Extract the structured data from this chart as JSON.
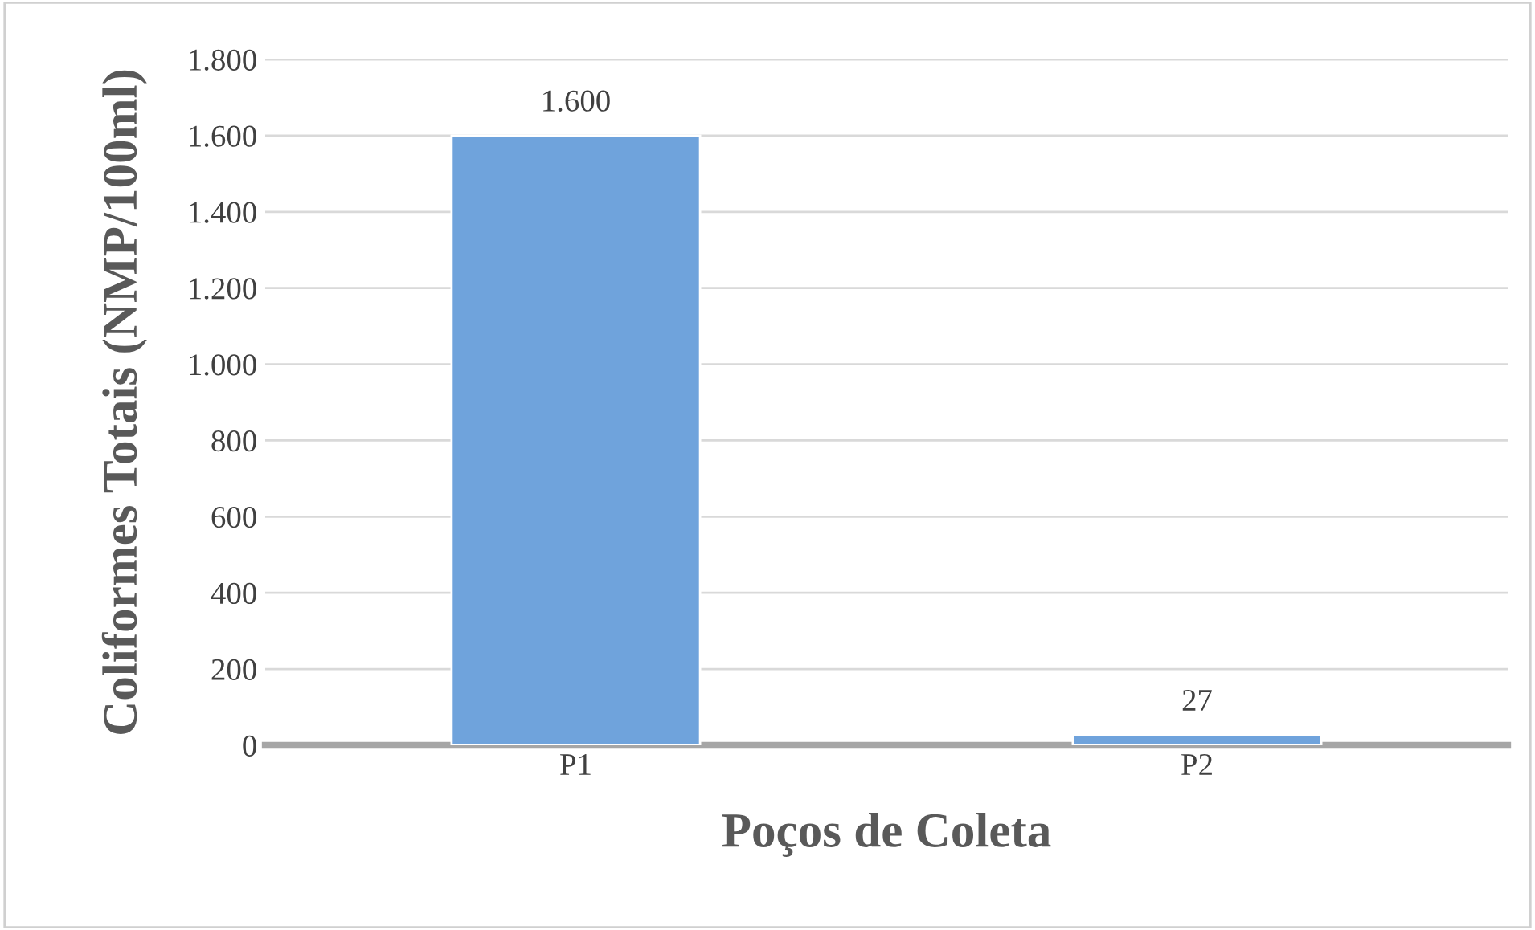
{
  "chart_data": {
    "type": "bar",
    "xlabel": "Poços de Coleta",
    "ylabel": "Coliformes Totais (NMP/100ml)",
    "categories": [
      "P1",
      "P2"
    ],
    "series": [
      {
        "color": "#6fa3dc",
        "values": [
          1600,
          27
        ]
      }
    ],
    "value_labels": [
      "1.600",
      "27"
    ],
    "ylim": [
      0,
      1800
    ],
    "yticks": [
      {
        "value": 0,
        "label": "0"
      },
      {
        "value": 200,
        "label": "200"
      },
      {
        "value": 400,
        "label": "400"
      },
      {
        "value": 600,
        "label": "600"
      },
      {
        "value": 800,
        "label": "800"
      },
      {
        "value": 1000,
        "label": "1.000"
      },
      {
        "value": 1200,
        "label": "1.200"
      },
      {
        "value": 1400,
        "label": "1.400"
      },
      {
        "value": 1600,
        "label": "1.600"
      },
      {
        "value": 1800,
        "label": "1.800"
      }
    ],
    "grid": "y"
  }
}
